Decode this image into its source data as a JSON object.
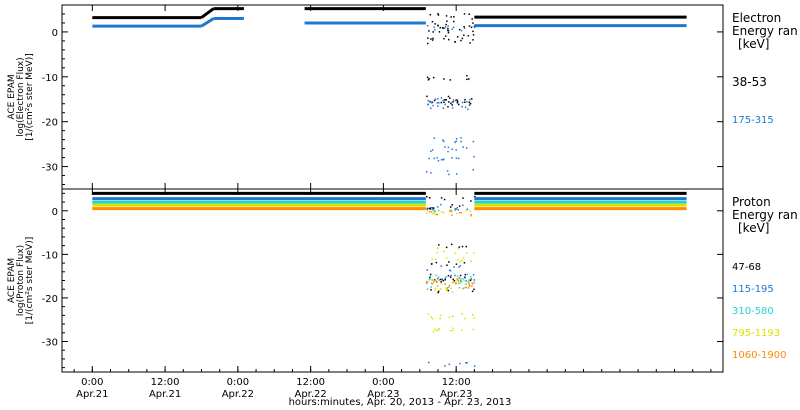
{
  "chart_data": [
    {
      "type": "scatter",
      "ylabel_lines": [
        "ACE EPAM",
        "log(Electron Flux)",
        "[1/(cm²s ster MeV)]"
      ],
      "ylim": [
        -35,
        6
      ],
      "yticks": [
        0,
        -10,
        -20,
        -30
      ],
      "legend": {
        "title": [
          "Electron",
          "Energy ran"
        ],
        "unit": "[keV]",
        "entries": [
          {
            "label": "38-53",
            "color": "#000000"
          },
          {
            "label": "175-315",
            "color": "#1f78d0"
          }
        ]
      },
      "series": [
        {
          "color": "#000000",
          "segments": [
            {
              "x": [
                0,
                18
              ],
              "y": [
                3.2,
                3.2
              ]
            },
            {
              "x": [
                20,
                25
              ],
              "y": [
                5.2,
                5.2
              ]
            },
            {
              "x": [
                35,
                55
              ],
              "y": [
                5.2,
                5.2
              ]
            },
            {
              "x": [
                63,
                98
              ],
              "y": [
                3.3,
                3.3
              ]
            }
          ],
          "scatter": {
            "x0": 55,
            "x1": 63,
            "y": [
              4.0,
              2.5,
              1.5,
              0.5,
              -1.0,
              -2.0,
              -10.0,
              -14.5,
              -15.0,
              -16.0
            ]
          }
        },
        {
          "color": "#1f78d0",
          "segments": [
            {
              "x": [
                0,
                18
              ],
              "y": [
                1.3,
                1.3
              ]
            },
            {
              "x": [
                20,
                25
              ],
              "y": [
                3.0,
                3.0
              ]
            },
            {
              "x": [
                35,
                55
              ],
              "y": [
                2.0,
                2.0
              ]
            },
            {
              "x": [
                63,
                98
              ],
              "y": [
                1.4,
                1.4
              ]
            }
          ],
          "scatter": {
            "x0": 55,
            "x1": 63,
            "y": [
              1.0,
              -15.0,
              -15.5,
              -16.5,
              -24.0,
              -26.0,
              -28.0,
              -31.0
            ]
          }
        }
      ]
    },
    {
      "type": "scatter",
      "ylabel_lines": [
        "ACE EPAM",
        "log(Proton Flux)",
        "[1/(cm²s ster MeV)]"
      ],
      "ylim": [
        -37,
        5
      ],
      "yticks": [
        0,
        -10,
        -20,
        -30
      ],
      "legend": {
        "title": [
          "Proton",
          "Energy ran"
        ],
        "unit": "[keV]",
        "entries": [
          {
            "label": "47-68",
            "color": "#000000"
          },
          {
            "label": "115-195",
            "color": "#1f78d0"
          },
          {
            "label": "310-580",
            "color": "#22d4d4"
          },
          {
            "label": "795-1193",
            "color": "#e0e000"
          },
          {
            "label": "1060-1900",
            "color": "#ff8c00"
          }
        ]
      },
      "series": [
        {
          "color": "#000000",
          "segments": [
            {
              "x": [
                0,
                55
              ],
              "y": [
                4.0,
                4.0
              ]
            },
            {
              "x": [
                63,
                98
              ],
              "y": [
                4.0,
                4.0
              ]
            }
          ],
          "scatter": {
            "x0": 55,
            "x1": 63,
            "y": [
              3.0,
              1.0,
              -8.0,
              -12.0,
              -15.0,
              -16.0,
              -18.0
            ]
          }
        },
        {
          "color": "#1f78d0",
          "segments": [
            {
              "x": [
                0,
                55
              ],
              "y": [
                2.8,
                2.8
              ]
            },
            {
              "x": [
                63,
                98
              ],
              "y": [
                2.8,
                2.8
              ]
            }
          ],
          "scatter": {
            "x0": 55,
            "x1": 63,
            "y": [
              1.0,
              -13.0,
              -15.0,
              -16.0,
              -35.0
            ]
          }
        },
        {
          "color": "#22d4d4",
          "segments": [
            {
              "x": [
                0,
                55
              ],
              "y": [
                2.0,
                2.0
              ]
            },
            {
              "x": [
                63,
                98
              ],
              "y": [
                2.0,
                2.0
              ]
            }
          ],
          "scatter": {
            "x0": 55,
            "x1": 63,
            "y": [
              0.5,
              -15.0,
              -16.0,
              -17.0
            ]
          }
        },
        {
          "color": "#e0e000",
          "segments": [
            {
              "x": [
                0,
                55
              ],
              "y": [
                1.3,
                1.3
              ]
            },
            {
              "x": [
                63,
                98
              ],
              "y": [
                1.3,
                1.3
              ]
            }
          ],
          "scatter": {
            "x0": 55,
            "x1": 63,
            "y": [
              0.0,
              -9.0,
              -11.0,
              -16.0,
              -18.0,
              -24.0,
              -27.0
            ]
          }
        },
        {
          "color": "#ff8c00",
          "segments": [
            {
              "x": [
                0,
                55
              ],
              "y": [
                0.5,
                0.5
              ]
            },
            {
              "x": [
                63,
                98
              ],
              "y": [
                0.5,
                0.5
              ]
            }
          ],
          "scatter": {
            "x0": 55,
            "x1": 63,
            "y": [
              -0.5,
              -16.0,
              -17.0,
              -17.5
            ]
          }
        }
      ]
    }
  ],
  "x_axis": {
    "range_hours": [
      -5,
      104
    ],
    "ticks": [
      {
        "hour": 0,
        "time": "0:00",
        "date": "Apr.21"
      },
      {
        "hour": 12,
        "time": "12:00",
        "date": "Apr.21"
      },
      {
        "hour": 24,
        "time": "0:00",
        "date": "Apr.22"
      },
      {
        "hour": 36,
        "time": "12:00",
        "date": "Apr.22"
      },
      {
        "hour": 48,
        "time": "0:00",
        "date": "Apr.23"
      },
      {
        "hour": 60,
        "time": "12:00",
        "date": "Apr.23"
      }
    ],
    "label": "hours:minutes, Apr. 20, 2013 - Apr. 23, 2013"
  }
}
